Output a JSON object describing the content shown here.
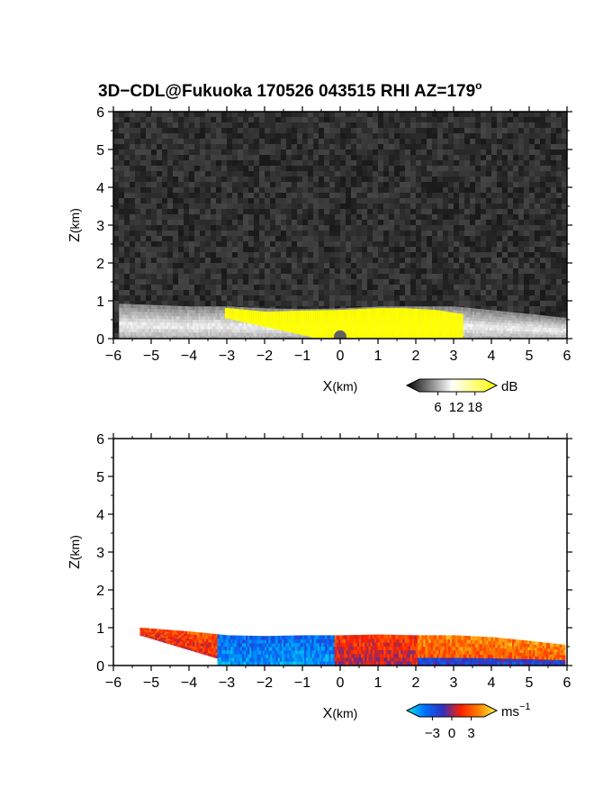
{
  "chart_data": [
    {
      "type": "heatmap",
      "title": "3D−CDL@Fukuoka 170526 043515 RHI AZ=179",
      "title_sup": "o",
      "xlabel": "X",
      "xlabel_unit": "(km)",
      "ylabel": "Z",
      "ylabel_unit": "(km)",
      "xlim": [
        -6,
        6
      ],
      "ylim": [
        0,
        6
      ],
      "x_ticks": [
        "−6",
        "−5",
        "−4",
        "−3",
        "−2",
        "−1",
        "0",
        "1",
        "2",
        "3",
        "4",
        "5",
        "6"
      ],
      "y_ticks": [
        "0",
        "1",
        "2",
        "3",
        "4",
        "5",
        "6"
      ],
      "background": "noise",
      "colorbar": {
        "unit": "dB",
        "ticks": [
          "6",
          "12",
          "18"
        ],
        "tick_values": [
          6,
          12,
          18
        ],
        "range": [
          0,
          21
        ],
        "colors": [
          "#000000",
          "#ffffff",
          "#ffff00"
        ]
      },
      "echo_layer": {
        "top_km": [
          [
            -5.8,
            0.92
          ],
          [
            -4,
            0.85
          ],
          [
            -3,
            0.85
          ],
          [
            -2,
            0.8
          ],
          [
            -1,
            0.78
          ],
          [
            0,
            0.8
          ],
          [
            1,
            0.85
          ],
          [
            2,
            0.85
          ],
          [
            3,
            0.85
          ],
          [
            4,
            0.75
          ],
          [
            5,
            0.65
          ],
          [
            5.9,
            0.55
          ]
        ],
        "saturated_region_top_km": [
          [
            -3,
            0.85
          ],
          [
            -2,
            0.75
          ],
          [
            -1,
            0.78
          ],
          [
            0,
            0.8
          ],
          [
            1,
            0.85
          ],
          [
            1.6,
            0.85
          ],
          [
            2.5,
            0.8
          ],
          [
            3.1,
            0.7
          ]
        ],
        "saturated_region_x_km": [
          -3.1,
          3.2
        ]
      }
    },
    {
      "type": "heatmap",
      "xlabel": "X",
      "xlabel_unit": "(km)",
      "ylabel": "Z",
      "ylabel_unit": "(km)",
      "xlim": [
        -6,
        6
      ],
      "ylim": [
        0,
        6
      ],
      "x_ticks": [
        "−6",
        "−5",
        "−4",
        "−3",
        "−2",
        "−1",
        "0",
        "1",
        "2",
        "3",
        "4",
        "5",
        "6"
      ],
      "y_ticks": [
        "0",
        "1",
        "2",
        "3",
        "4",
        "5",
        "6"
      ],
      "background": "#ffffff",
      "colorbar": {
        "unit": "ms",
        "unit_sup": "−1",
        "ticks": [
          "−3",
          "0",
          "3"
        ],
        "tick_values": [
          -3,
          0,
          3
        ],
        "range": [
          -5,
          5
        ],
        "colors": [
          "#00e8e8",
          "#0070ff",
          "#3030c0",
          "#ff2000",
          "#ff8000",
          "#ffff40"
        ]
      },
      "velocity_layer": {
        "extent_x_km": [
          -5.3,
          5.9
        ],
        "top_km": [
          [
            -5.3,
            1.0
          ],
          [
            -4,
            0.9
          ],
          [
            -3,
            0.8
          ],
          [
            -2,
            0.78
          ],
          [
            -1,
            0.8
          ],
          [
            0,
            0.8
          ],
          [
            1,
            0.82
          ],
          [
            2,
            0.8
          ],
          [
            3,
            0.8
          ],
          [
            4,
            0.75
          ],
          [
            5,
            0.65
          ],
          [
            5.9,
            0.55
          ]
        ],
        "segments": [
          {
            "x_km": [
              -5.3,
              -3.3
            ],
            "mean_ms": 1.5
          },
          {
            "x_km": [
              -3.3,
              -0.2
            ],
            "mean_ms": -3.0
          },
          {
            "x_km": [
              -0.2,
              2.0
            ],
            "mean_ms": 1.0
          },
          {
            "x_km": [
              2.0,
              5.9
            ],
            "mean_ms": 2.5
          }
        ]
      }
    }
  ]
}
